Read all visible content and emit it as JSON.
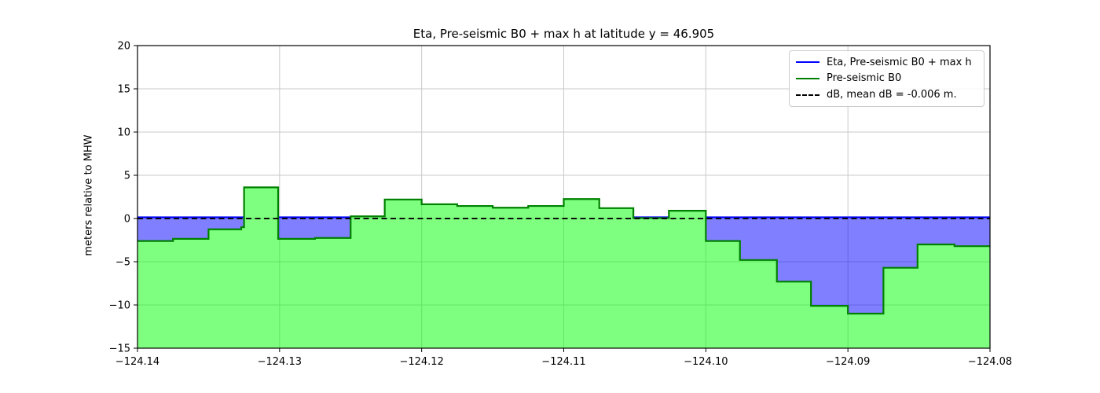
{
  "chart_data": {
    "type": "area",
    "title": "Eta, Pre-seismic B0 + max h at latitude y = 46.905",
    "xlabel": "",
    "ylabel": "meters relative to MHW",
    "xlim": [
      -124.14,
      -124.08
    ],
    "ylim": [
      -15,
      20
    ],
    "grid": true,
    "legend_position": "upper right",
    "xticks": [
      {
        "value": -124.14,
        "label": "−124.14"
      },
      {
        "value": -124.13,
        "label": "−124.13"
      },
      {
        "value": -124.12,
        "label": "−124.12"
      },
      {
        "value": -124.11,
        "label": "−124.11"
      },
      {
        "value": -124.1,
        "label": "−124.10"
      },
      {
        "value": -124.09,
        "label": "−124.09"
      },
      {
        "value": -124.08,
        "label": "−124.08"
      }
    ],
    "yticks": [
      {
        "value": 20,
        "label": "20"
      },
      {
        "value": 15,
        "label": "15"
      },
      {
        "value": 10,
        "label": "10"
      },
      {
        "value": 5,
        "label": "5"
      },
      {
        "value": 0,
        "label": "0"
      },
      {
        "value": -5,
        "label": "−5"
      },
      {
        "value": -10,
        "label": "−10"
      },
      {
        "value": -15,
        "label": "−15"
      }
    ],
    "series": [
      {
        "name": "Eta, Pre-seismic B0 + max h",
        "type": "hline-with-fill-to-b0",
        "value": 0.15,
        "color": "#0000ff",
        "fill": "rgba(0,0,255,0.5)"
      },
      {
        "name": "Pre-seismic B0",
        "type": "steps-filled-to-bottom",
        "color": "#008000",
        "fill": "rgba(0,255,0,0.5)",
        "x_edges": [
          -124.14,
          -124.1375,
          -124.135,
          -124.1327,
          -124.1325,
          -124.1301,
          -124.1275,
          -124.125,
          -124.1226,
          -124.12,
          -124.1175,
          -124.115,
          -124.1125,
          -124.11,
          -124.1075,
          -124.1051,
          -124.1026,
          -124.1,
          -124.0976,
          -124.095,
          -124.0926,
          -124.09,
          -124.0875,
          -124.0851,
          -124.0825,
          -124.08
        ],
        "values": [
          -2.6,
          -2.35,
          -1.25,
          -1.0,
          3.6,
          -2.35,
          -2.25,
          0.25,
          2.2,
          1.65,
          1.45,
          1.25,
          1.45,
          2.25,
          1.2,
          0.05,
          0.9,
          -2.6,
          -4.8,
          -7.3,
          -10.1,
          -11.0,
          -5.7,
          -3.0,
          -3.2
        ]
      },
      {
        "name": "dB, mean dB = -0.006 m.",
        "type": "hline-dashed",
        "value": -0.006,
        "color": "#000000"
      }
    ],
    "colors": {
      "grid": "#c9c9c9",
      "spine": "#000000",
      "eta_fill": "rgba(0,0,255,0.5)",
      "b0_fill": "rgba(0,255,0,0.5)"
    }
  }
}
